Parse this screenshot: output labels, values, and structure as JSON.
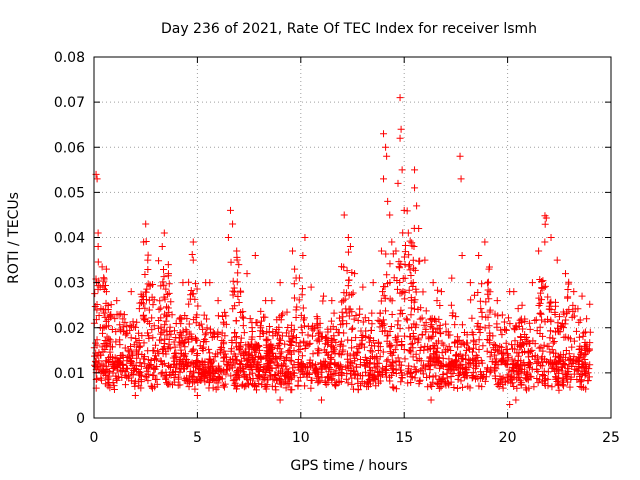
{
  "chart_data": {
    "type": "scatter",
    "title": "Day 236 of 2021, Rate Of TEC Index for receiver lsmh",
    "xlabel": "GPS time / hours",
    "ylabel": "ROTI / TECUs",
    "xlim": [
      0,
      25
    ],
    "ylim": [
      0,
      0.08
    ],
    "xticks": [
      0,
      5,
      10,
      15,
      20,
      25
    ],
    "yticks": [
      0,
      0.01,
      0.02,
      0.03,
      0.04,
      0.05,
      0.06,
      0.07,
      0.08
    ],
    "xtick_labels": [
      "0",
      "5",
      "10",
      "15",
      "20",
      "25"
    ],
    "ytick_labels": [
      "0",
      "0.01",
      "0.02",
      "0.03",
      "0.04",
      "0.05",
      "0.06",
      "0.07",
      "0.08"
    ],
    "grid": true,
    "marker": "+",
    "color": "#ff0000",
    "series": [
      {
        "name": "",
        "points": [
          [
            0.1,
            0.054
          ],
          [
            0.15,
            0.053
          ],
          [
            0.2,
            0.041
          ],
          [
            0.2,
            0.038
          ],
          [
            0.12,
            0.03
          ],
          [
            0.3,
            0.029
          ],
          [
            0.6,
            0.033
          ],
          [
            0.6,
            0.028
          ],
          [
            1.1,
            0.026
          ],
          [
            1.8,
            0.028
          ],
          [
            2.5,
            0.043
          ],
          [
            2.4,
            0.039
          ],
          [
            2.6,
            0.035
          ],
          [
            3.4,
            0.041
          ],
          [
            3.3,
            0.038
          ],
          [
            3.6,
            0.032
          ],
          [
            4.3,
            0.03
          ],
          [
            4.8,
            0.035
          ],
          [
            4.8,
            0.039
          ],
          [
            5.4,
            0.03
          ],
          [
            5.6,
            0.03
          ],
          [
            6.0,
            0.026
          ],
          [
            6.6,
            0.046
          ],
          [
            6.7,
            0.043
          ],
          [
            6.5,
            0.04
          ],
          [
            6.9,
            0.037
          ],
          [
            7.0,
            0.034
          ],
          [
            7.4,
            0.032
          ],
          [
            7.8,
            0.036
          ],
          [
            8.3,
            0.026
          ],
          [
            8.6,
            0.026
          ],
          [
            9.0,
            0.03
          ],
          [
            9.6,
            0.037
          ],
          [
            9.7,
            0.033
          ],
          [
            10.2,
            0.04
          ],
          [
            10.1,
            0.036
          ],
          [
            10.5,
            0.029
          ],
          [
            11.1,
            0.027
          ],
          [
            11.5,
            0.026
          ],
          [
            12.1,
            0.045
          ],
          [
            12.3,
            0.04
          ],
          [
            12.4,
            0.038
          ],
          [
            12.6,
            0.032
          ],
          [
            13.0,
            0.029
          ],
          [
            13.5,
            0.03
          ],
          [
            13.9,
            0.037
          ],
          [
            14.0,
            0.063
          ],
          [
            14.1,
            0.06
          ],
          [
            14.15,
            0.058
          ],
          [
            14.0,
            0.053
          ],
          [
            14.2,
            0.048
          ],
          [
            14.3,
            0.045
          ],
          [
            14.4,
            0.039
          ],
          [
            14.6,
            0.037
          ],
          [
            14.8,
            0.071
          ],
          [
            14.85,
            0.064
          ],
          [
            14.8,
            0.062
          ],
          [
            14.9,
            0.055
          ],
          [
            14.7,
            0.052
          ],
          [
            15.0,
            0.046
          ],
          [
            15.2,
            0.041
          ],
          [
            15.5,
            0.055
          ],
          [
            15.5,
            0.051
          ],
          [
            15.6,
            0.047
          ],
          [
            15.7,
            0.042
          ],
          [
            16.0,
            0.035
          ],
          [
            16.4,
            0.03
          ],
          [
            16.8,
            0.028
          ],
          [
            17.3,
            0.031
          ],
          [
            17.7,
            0.058
          ],
          [
            17.75,
            0.053
          ],
          [
            17.8,
            0.036
          ],
          [
            18.2,
            0.03
          ],
          [
            18.6,
            0.036
          ],
          [
            18.9,
            0.039
          ],
          [
            19.1,
            0.033
          ],
          [
            19.5,
            0.026
          ],
          [
            20.1,
            0.028
          ],
          [
            20.3,
            0.028
          ],
          [
            20.7,
            0.025
          ],
          [
            21.2,
            0.03
          ],
          [
            21.5,
            0.037
          ],
          [
            21.8,
            0.039
          ],
          [
            22.1,
            0.04
          ],
          [
            22.4,
            0.035
          ],
          [
            22.8,
            0.032
          ],
          [
            23.2,
            0.028
          ],
          [
            23.6,
            0.027
          ],
          [
            20.1,
            0.003
          ],
          [
            20.4,
            0.004
          ],
          [
            16.3,
            0.004
          ],
          [
            9.0,
            0.004
          ],
          [
            2.0,
            0.005
          ],
          [
            5.0,
            0.005
          ],
          [
            11.0,
            0.004
          ]
        ]
      }
    ]
  }
}
